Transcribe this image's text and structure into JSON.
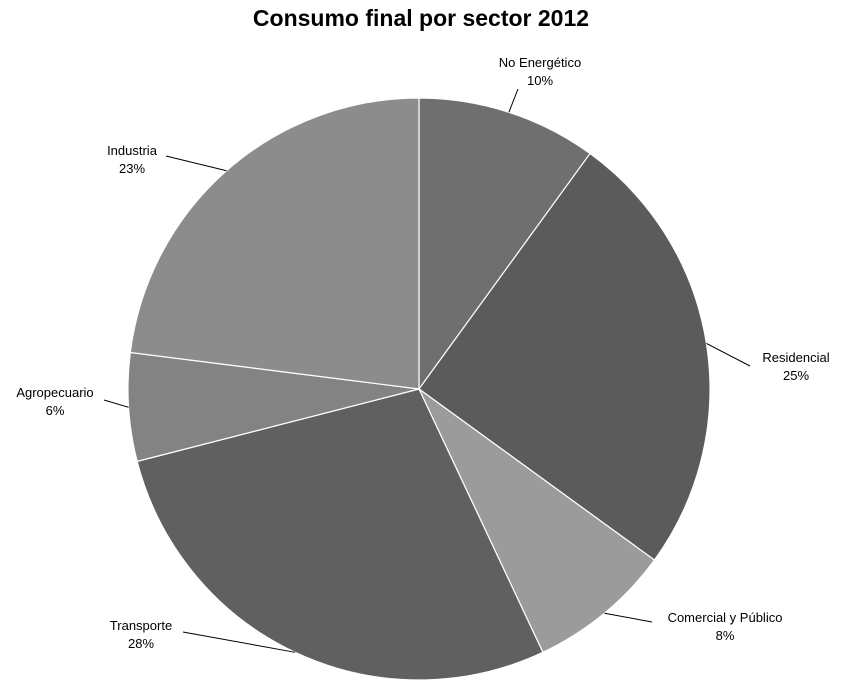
{
  "chart_data": {
    "type": "pie",
    "title": "Consumo final por sector 2012",
    "slices": [
      {
        "label": "No Energético",
        "value": 10,
        "value_label": "10%",
        "color": "#6f6f6f"
      },
      {
        "label": "Residencial",
        "value": 25,
        "value_label": "25%",
        "color": "#5b5b5b"
      },
      {
        "label": "Comercial y Público",
        "value": 8,
        "value_label": "8%",
        "color": "#9b9b9b"
      },
      {
        "label": "Transporte",
        "value": 28,
        "value_label": "28%",
        "color": "#606060"
      },
      {
        "label": "Agropecuario",
        "value": 6,
        "value_label": "6%",
        "color": "#838383"
      },
      {
        "label": "Industria",
        "value": 23,
        "value_label": "23%",
        "color": "#8c8c8c"
      }
    ],
    "start_angle_deg": 0,
    "direction": "clockwise",
    "legend": "none"
  }
}
